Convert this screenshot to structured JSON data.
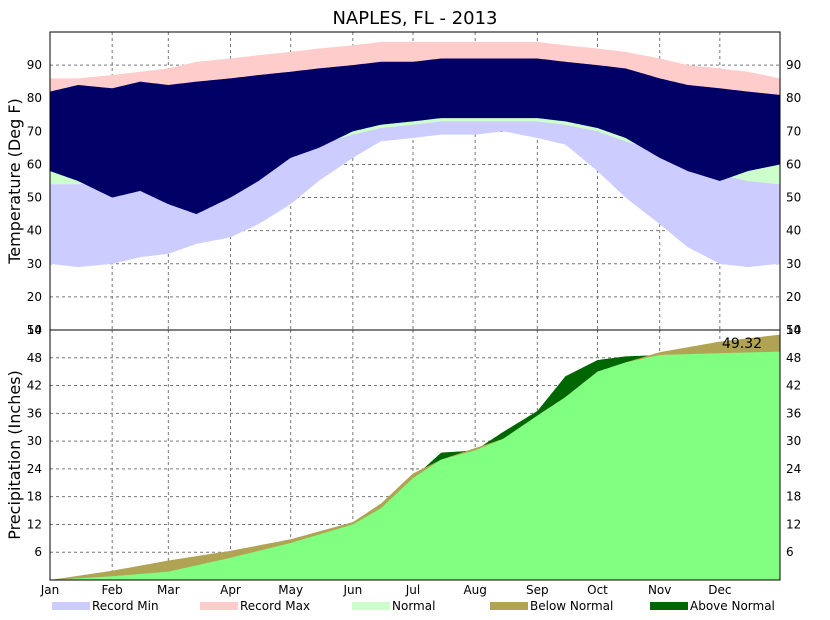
{
  "chart_data": {
    "title": "NAPLES, FL - 2013",
    "x_ticks": [
      "Jan",
      "Feb",
      "Mar",
      "Apr",
      "May",
      "Jun",
      "Jul",
      "Aug",
      "Sep",
      "Oct",
      "Nov",
      "Dec"
    ],
    "legend": [
      {
        "label": "Record Min",
        "color": "#ccccff"
      },
      {
        "label": "Record Max",
        "color": "#ffcccc"
      },
      {
        "label": "Normal",
        "color": "#ccffcc"
      },
      {
        "label": "Below Normal",
        "color": "#b0a454"
      },
      {
        "label": "Above Normal",
        "color": "#006600"
      }
    ],
    "panels": [
      {
        "type": "area",
        "ylabel": "Temperature (Deg F)",
        "ylim": [
          10,
          100
        ],
        "y_ticks": [
          "10",
          "20",
          "30",
          "40",
          "50",
          "60",
          "70",
          "80",
          "90"
        ],
        "grid": true,
        "day_of_year": [
          1,
          15,
          32,
          46,
          60,
          74,
          91,
          105,
          121,
          135,
          152,
          166,
          182,
          196,
          213,
          227,
          244,
          258,
          274,
          288,
          305,
          319,
          335,
          349,
          365
        ],
        "record_max": [
          86,
          86,
          87,
          88,
          89,
          91,
          92,
          93,
          94,
          95,
          96,
          97,
          97,
          97,
          97,
          97,
          97,
          96,
          95,
          94,
          92,
          90,
          89,
          88,
          86
        ],
        "normal_max": [
          76,
          76,
          78,
          79,
          80,
          81,
          83,
          85,
          87,
          88,
          89,
          90,
          91,
          92,
          92,
          92,
          91,
          90,
          88,
          86,
          84,
          81,
          79,
          77,
          76
        ],
        "normal_min": [
          54,
          54,
          55,
          56,
          57,
          58,
          60,
          62,
          64,
          66,
          69,
          71,
          72,
          73,
          73,
          73,
          73,
          72,
          70,
          67,
          64,
          60,
          57,
          55,
          54
        ],
        "record_min": [
          30,
          29,
          30,
          32,
          33,
          36,
          38,
          42,
          48,
          55,
          62,
          67,
          68,
          69,
          69,
          70,
          68,
          66,
          58,
          50,
          42,
          35,
          30,
          29,
          30
        ],
        "actual_high": [
          82,
          84,
          83,
          85,
          84,
          85,
          86,
          87,
          88,
          89,
          90,
          91,
          91,
          92,
          92,
          92,
          92,
          91,
          90,
          89,
          86,
          84,
          83,
          82,
          81
        ],
        "actual_low": [
          58,
          55,
          50,
          52,
          48,
          45,
          50,
          55,
          62,
          65,
          70,
          72,
          73,
          74,
          74,
          74,
          74,
          73,
          71,
          68,
          62,
          58,
          55,
          58,
          60
        ]
      },
      {
        "type": "area",
        "ylabel": "Precipitation (Inches)",
        "ylim": [
          0,
          54
        ],
        "y_ticks": [
          "6",
          "12",
          "18",
          "24",
          "30",
          "36",
          "42",
          "48",
          "54"
        ],
        "grid": true,
        "day_of_year": [
          1,
          32,
          60,
          91,
          121,
          152,
          166,
          182,
          196,
          213,
          227,
          244,
          258,
          274,
          288,
          305,
          335,
          365
        ],
        "normal_cumulative": [
          0,
          2.0,
          4.2,
          6.3,
          8.8,
          12.5,
          16.5,
          23.0,
          26.0,
          28.5,
          30.5,
          35.5,
          39.5,
          45.0,
          47.0,
          49.2,
          51.5,
          53.0
        ],
        "actual_cumulative": [
          0,
          0.8,
          1.8,
          4.8,
          8.0,
          12.0,
          15.5,
          22.0,
          27.5,
          28.0,
          32.0,
          36.5,
          44.0,
          47.5,
          48.3,
          48.6,
          49.0,
          49.32
        ],
        "annotation": "49.32"
      }
    ]
  }
}
